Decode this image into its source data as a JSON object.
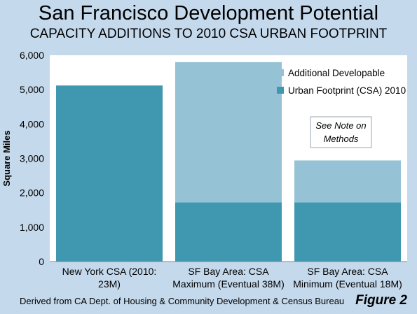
{
  "title": "San Francisco Development Potential",
  "subtitle": "CAPACITY ADDITIONS TO 2010 CSA URBAN FOOTPRINT",
  "footer": "Derived from  CA Dept. of Housing & Community Development & Census Bureau",
  "figure_label": "Figure 2",
  "note_lines": [
    "See Note on",
    "Methods"
  ],
  "colors": {
    "urban_footprint": "#4097b0",
    "additional": "#95c3d5",
    "plot_bg": "#ffffff",
    "page_bg": "#c5d9ec"
  },
  "chart_data": {
    "type": "bar",
    "stacked": true,
    "title": "San Francisco Development Potential",
    "subtitle": "CAPACITY ADDITIONS TO 2010 CSA URBAN FOOTPRINT",
    "xlabel": "",
    "ylabel": "Square Miles",
    "ylim": [
      0,
      6000
    ],
    "yticks": [
      0,
      1000,
      2000,
      3000,
      4000,
      5000,
      6000
    ],
    "ytick_labels": [
      "0",
      "1,000",
      "2,000",
      "3,000",
      "4,000",
      "5,000",
      "6,000"
    ],
    "categories": [
      [
        "New York CSA (2010:",
        "23M)"
      ],
      [
        "SF Bay Area: CSA",
        "Maximum (Eventual 38M)"
      ],
      [
        "SF Bay Area: CSA",
        "Minimum (Eventual 18M)"
      ]
    ],
    "series": [
      {
        "name": "Urban Footprint (CSA) 2010",
        "values": [
          5120,
          1720,
          1720
        ]
      },
      {
        "name": "Additional Developable",
        "values": [
          0,
          4080,
          1220
        ]
      }
    ],
    "legend_order": [
      "Additional Developable",
      "Urban Footprint (CSA) 2010"
    ],
    "legend_position": "top-right",
    "grid": false
  }
}
